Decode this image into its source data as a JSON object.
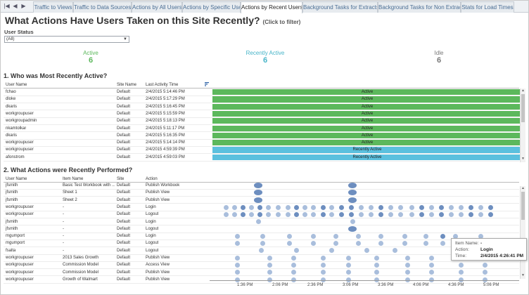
{
  "tabs": [
    {
      "label": "Traffic to Views",
      "active": false
    },
    {
      "label": "Traffic to Data Sources",
      "active": false
    },
    {
      "label": "Actions by All Users",
      "active": false
    },
    {
      "label": "Actions by Specific User",
      "active": false
    },
    {
      "label": "Actions by Recent Users",
      "active": true
    },
    {
      "label": "Background Tasks for Extracts",
      "active": false
    },
    {
      "label": "Background Tasks for Non Extracts",
      "active": false
    },
    {
      "label": "Stats for Load Times",
      "active": false
    }
  ],
  "header": {
    "title": "What Actions Have Users Taken on this Site Recently?",
    "hint": "(Click to filter)"
  },
  "filter": {
    "label": "User Status",
    "value": "(All)"
  },
  "kpis": [
    {
      "label": "Active",
      "value": "6",
      "color": "#5cb85c"
    },
    {
      "label": "Recently Active",
      "value": "6",
      "color": "#46b4c8"
    },
    {
      "label": "Idle",
      "value": "6",
      "color": "#777777"
    }
  ],
  "section1": {
    "title": "1. Who was Most Recently Active?",
    "columns": [
      "User Name",
      "Site Name",
      "Last Activity Time"
    ],
    "rows": [
      {
        "user": "fchao",
        "site": "Default",
        "time": "2/4/2015 5:14:46 PM",
        "status": "Active"
      },
      {
        "user": "dloke",
        "site": "Default",
        "time": "2/4/2015 5:17:29 PM",
        "status": "Active"
      },
      {
        "user": "dkaris",
        "site": "Default",
        "time": "2/4/2015 5:16:45 PM",
        "status": "Active"
      },
      {
        "user": "workgroupuser",
        "site": "Default",
        "time": "2/4/2015 5:15:59 PM",
        "status": "Active"
      },
      {
        "user": "workgroupadmin",
        "site": "Default",
        "time": "2/4/2015 5:18:13 PM",
        "status": "Active"
      },
      {
        "user": "nkamtolkar",
        "site": "Default",
        "time": "2/4/2015 5:11:17 PM",
        "status": "Active"
      },
      {
        "user": "dkaris",
        "site": "Default",
        "time": "2/4/2015 5:16:35 PM",
        "status": "Active"
      },
      {
        "user": "workgroupuser",
        "site": "Default",
        "time": "2/4/2015 5:14:14 PM",
        "status": "Active"
      },
      {
        "user": "workgroupuser",
        "site": "Default",
        "time": "2/4/2015 4:59:39 PM",
        "status": "Recently Active"
      },
      {
        "user": "afonstrom",
        "site": "Default",
        "time": "2/4/2015 4:59:03 PM",
        "status": "Recently Active"
      }
    ]
  },
  "section2": {
    "title": "2. What Actions were Recently Performed?",
    "columns": [
      "User Name",
      "Item Name",
      "Site",
      "Action"
    ],
    "rows": [
      {
        "user": "jfsmith",
        "item": "Basic Test Workbook with ...",
        "site": "Default",
        "action": "Publish Workbook"
      },
      {
        "user": "jfsmith",
        "item": "Sheet 1",
        "site": "Default",
        "action": "Publish View"
      },
      {
        "user": "jfsmith",
        "item": "Sheet 2",
        "site": "Default",
        "action": "Publish View"
      },
      {
        "user": "workgroupuser",
        "item": "-",
        "site": "Default",
        "action": "Login"
      },
      {
        "user": "workgroupuser",
        "item": "-",
        "site": "Default",
        "action": "Logout"
      },
      {
        "user": "jfsmith",
        "item": "-",
        "site": "Default",
        "action": "Login"
      },
      {
        "user": "jfsmith",
        "item": "-",
        "site": "Default",
        "action": "Logout"
      },
      {
        "user": "mgumport",
        "item": "-",
        "site": "Default",
        "action": "Login"
      },
      {
        "user": "mgumport",
        "item": "-",
        "site": "Default",
        "action": "Logout"
      },
      {
        "user": "fsalta",
        "item": "-",
        "site": "Default",
        "action": "Logout"
      },
      {
        "user": "workgroupuser",
        "item": "2013 Sales Growth",
        "site": "Default",
        "action": "Publish View"
      },
      {
        "user": "workgroupuser",
        "item": "Commission Model",
        "site": "Default",
        "action": "Access View"
      },
      {
        "user": "workgroupuser",
        "item": "Commission Model",
        "site": "Default",
        "action": "Publish View"
      },
      {
        "user": "workgroupuser",
        "item": "Growth of Walmart",
        "site": "Default",
        "action": "Publish View"
      }
    ],
    "axis_ticks": [
      "1:36 PM",
      "2:06 PM",
      "2:36 PM",
      "3:06 PM",
      "3:36 PM",
      "4:06 PM",
      "4:36 PM",
      "5:06 PM"
    ]
  },
  "tooltip": {
    "rows": [
      {
        "key": "Item Name:",
        "value": "-"
      },
      {
        "key": "Action:",
        "value": "Login"
      },
      {
        "key": "Time:",
        "value": "2/4/2015 4:26:41 PM"
      }
    ]
  },
  "colors": {
    "active_bar": "#5cb85c",
    "recent_bar": "#5bc0de",
    "mark_light": "#a9bedc",
    "mark_dark": "#6d8ebf"
  }
}
